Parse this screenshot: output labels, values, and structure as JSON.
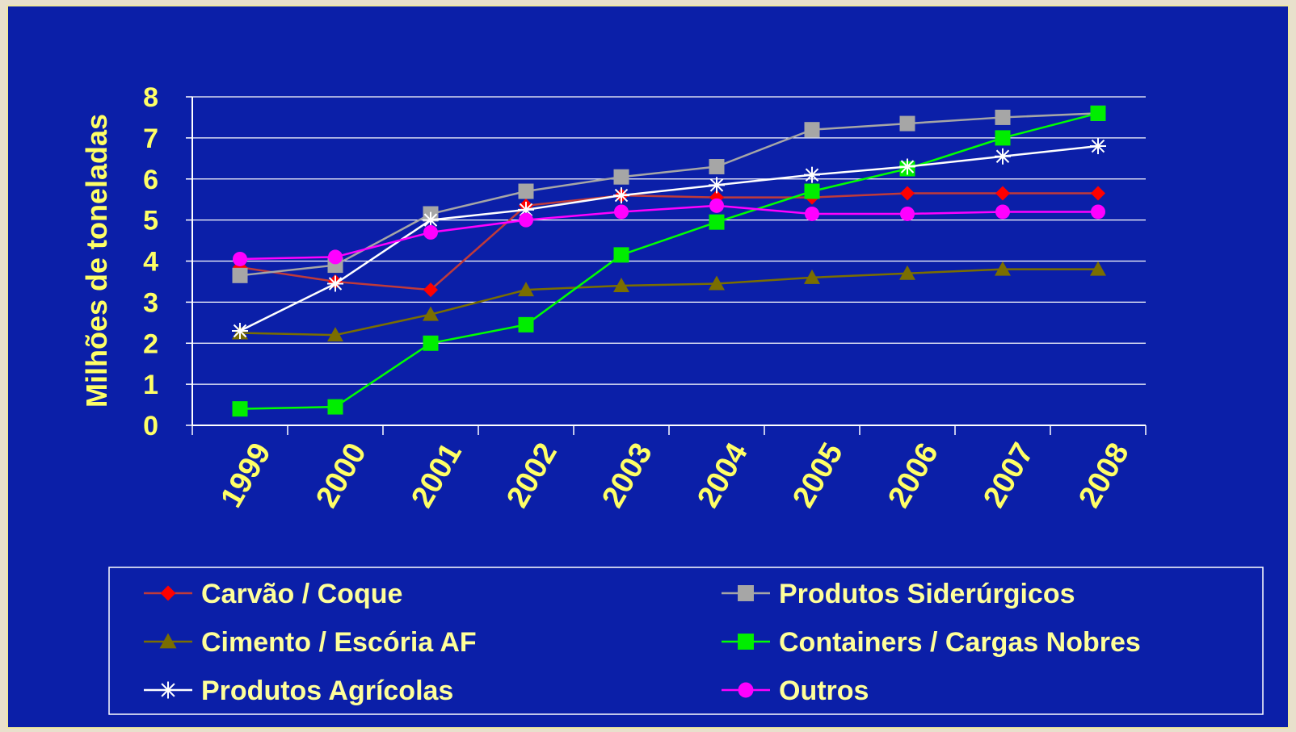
{
  "chart_data": {
    "type": "line",
    "title": "",
    "xlabel": "",
    "ylabel": "Milhões de toneladas",
    "ylim": [
      0,
      8
    ],
    "yticks": [
      "0",
      "1",
      "2",
      "3",
      "4",
      "5",
      "6",
      "7",
      "8"
    ],
    "categories": [
      "1999",
      "2000",
      "2001",
      "2002",
      "2003",
      "2004",
      "2005",
      "2006",
      "2007",
      "2008"
    ],
    "grid": true,
    "legend_position": "bottom",
    "series": [
      {
        "name": "Carvão / Coque",
        "color": "#c03a3a",
        "marker_color": "#ff0000",
        "marker": "diamond",
        "values": [
          3.85,
          3.5,
          3.3,
          5.35,
          5.6,
          5.55,
          5.55,
          5.65,
          5.65,
          5.65
        ]
      },
      {
        "name": "Produtos Siderúrgicos",
        "color": "#a6a6a6",
        "marker_color": "#a6a6a6",
        "marker": "square",
        "values": [
          3.65,
          3.9,
          5.15,
          5.7,
          6.05,
          6.3,
          7.2,
          7.35,
          7.5,
          7.6
        ]
      },
      {
        "name": "Cimento / Escória AF",
        "color": "#7a6e00",
        "marker_color": "#7a6e00",
        "marker": "triangle",
        "values": [
          2.25,
          2.2,
          2.7,
          3.3,
          3.4,
          3.45,
          3.6,
          3.7,
          3.8,
          3.8
        ]
      },
      {
        "name": "Containers / Cargas Nobres",
        "color": "#00ff00",
        "marker_color": "#00ee00",
        "marker": "square",
        "values": [
          0.4,
          0.45,
          2.0,
          2.45,
          4.15,
          4.95,
          5.7,
          6.25,
          7.0,
          7.6
        ]
      },
      {
        "name": "Produtos Agrícolas",
        "color": "#ffffff",
        "marker_color": "#ffffff",
        "marker": "star",
        "values": [
          2.3,
          3.45,
          5.0,
          5.25,
          5.6,
          5.85,
          6.1,
          6.3,
          6.55,
          6.8
        ]
      },
      {
        "name": "Outros",
        "color": "#ff00ff",
        "marker_color": "#ff00ff",
        "marker": "circle",
        "values": [
          4.05,
          4.1,
          4.7,
          5.0,
          5.2,
          5.35,
          5.15,
          5.15,
          5.2,
          5.2
        ]
      }
    ]
  }
}
